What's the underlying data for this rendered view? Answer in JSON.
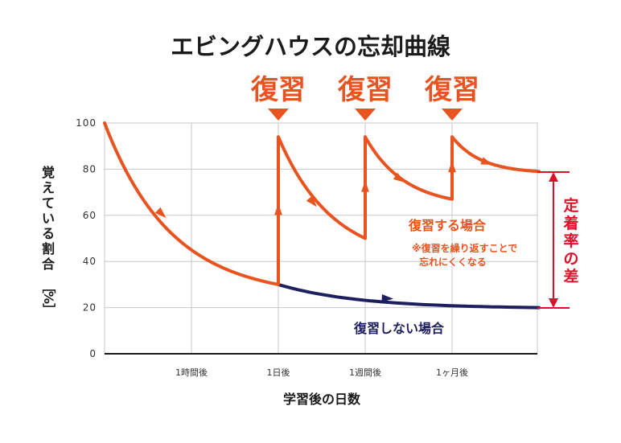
{
  "title": "エビングハウスの忘却曲線",
  "review_label": "復習",
  "chart_data": {
    "type": "line",
    "title": "エビングハウスの忘却曲線",
    "ylabel": "覚えている割合［%］",
    "xlabel": "学習後の日数",
    "ylim": [
      0,
      100
    ],
    "yticks": [
      0,
      20,
      40,
      60,
      80,
      100
    ],
    "xticks": [
      "1時間後",
      "1日後",
      "1週間後",
      "1ヶ月後"
    ],
    "series": [
      {
        "name": "復習しない場合",
        "color": "#1d1f5e",
        "points": [
          [
            0,
            100
          ],
          [
            2,
            30
          ],
          [
            5,
            20
          ]
        ]
      },
      {
        "name": "復習する場合",
        "color": "#e8541f",
        "points": [
          [
            0,
            100
          ],
          [
            2,
            30
          ],
          [
            2,
            94
          ],
          [
            3,
            50
          ],
          [
            3,
            94
          ],
          [
            4,
            67
          ],
          [
            4,
            94
          ],
          [
            5,
            79
          ]
        ]
      }
    ],
    "reviews_at": [
      "1日後",
      "1週間後",
      "1ヶ月後"
    ]
  },
  "annotations": {
    "review_case": "復習する場合",
    "review_note_line1": "※復習を繰り返すことで",
    "review_note_line2": "忘れにくくなる",
    "no_review_case": "復習しない場合",
    "retention_diff": "定着率の差",
    "percent_open": "［",
    "percent_sign": "%",
    "percent_close": "］"
  },
  "colors": {
    "orange": "#e8541f",
    "navy": "#1d1f5e",
    "red": "#e0102a",
    "grid": "#c8c8c8"
  }
}
